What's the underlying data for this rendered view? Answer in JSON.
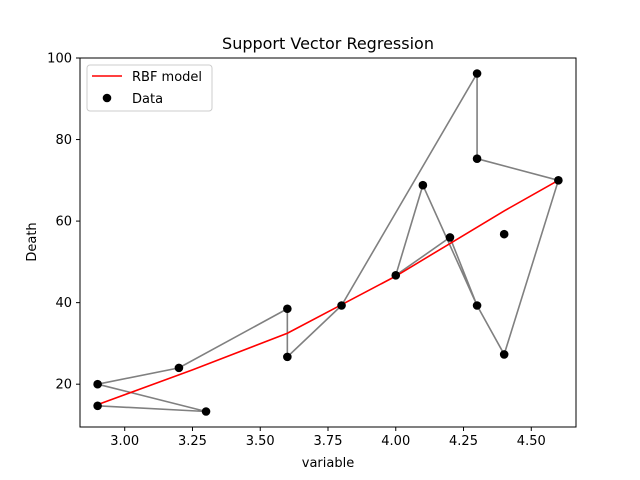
{
  "chart_data": {
    "type": "scatter",
    "title": "Support Vector Regression",
    "xlabel": "variable",
    "ylabel": "Death",
    "xlim": [
      2.835,
      4.665
    ],
    "ylim": [
      9.5,
      100
    ],
    "xticks": [
      "3.00",
      "3.25",
      "3.50",
      "3.75",
      "4.00",
      "4.25",
      "4.50"
    ],
    "xtick_values": [
      3.0,
      3.25,
      3.5,
      3.75,
      4.0,
      4.25,
      4.5
    ],
    "yticks": [
      "20",
      "40",
      "60",
      "80",
      "100"
    ],
    "ytick_values": [
      20,
      40,
      60,
      80,
      100
    ],
    "legend_position": "upper-left",
    "series": [
      {
        "name": "Data",
        "kind": "scatter",
        "color": "#000000",
        "x": [
          2.9,
          2.9,
          3.3,
          3.2,
          3.6,
          3.6,
          3.8,
          4.0,
          4.1,
          4.2,
          4.3,
          4.3,
          4.3,
          4.4,
          4.4,
          4.6
        ],
        "y": [
          14.7,
          20.0,
          13.3,
          24.0,
          38.5,
          26.7,
          39.3,
          46.7,
          68.8,
          56.0,
          96.2,
          75.3,
          39.3,
          56.8,
          27.3,
          70.0
        ]
      },
      {
        "name": "",
        "kind": "connecting-line",
        "color": "#808080",
        "x": [
          2.9,
          3.3,
          2.9,
          3.2,
          3.6,
          3.6,
          3.8,
          4.3,
          4.3,
          4.6,
          4.4,
          4.3,
          4.1,
          4.0,
          4.2,
          4.3
        ],
        "y": [
          14.7,
          13.3,
          20.0,
          24.0,
          38.5,
          26.7,
          39.3,
          96.2,
          75.3,
          70.0,
          27.3,
          39.3,
          68.8,
          46.7,
          56.0,
          39.3
        ]
      },
      {
        "name": "RBF model",
        "kind": "line",
        "color": "#ff0000",
        "x": [
          2.9,
          3.25,
          3.6,
          3.8,
          4.0,
          4.2,
          4.4,
          4.6
        ],
        "y": [
          15.0,
          23.5,
          32.5,
          39.5,
          46.5,
          54.5,
          62.5,
          70.0
        ]
      }
    ]
  }
}
